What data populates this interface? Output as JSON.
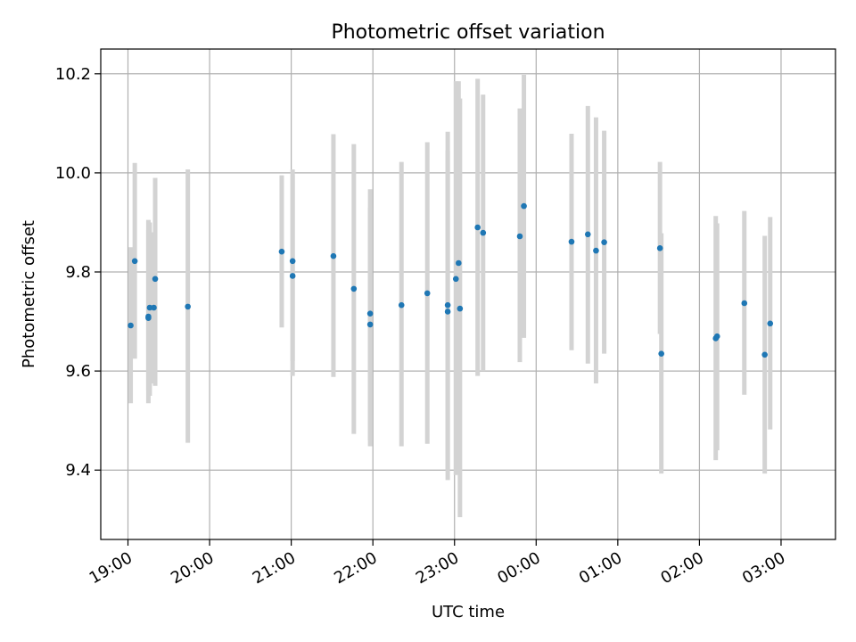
{
  "chart_data": {
    "type": "scatter",
    "title": "Photometric offset variation",
    "xlabel": "UTC time",
    "ylabel": "Photometric offset",
    "xlim": [
      "18:40",
      "03:40"
    ],
    "ylim": [
      9.26,
      10.25
    ],
    "grid": true,
    "x_ticks": [
      "19:00",
      "20:00",
      "21:00",
      "22:00",
      "23:00",
      "00:00",
      "01:00",
      "02:00",
      "03:00"
    ],
    "y_ticks": [
      "9.4",
      "9.6",
      "9.8",
      "10.0",
      "10.2"
    ],
    "colors": {
      "point": "#1f77b4",
      "errorbar": "#d3d3d3",
      "grid": "#b0b0b0"
    },
    "series": [
      {
        "points": [
          {
            "x": "19:02",
            "y": 9.692,
            "err_low": 9.535,
            "err_high": 9.85
          },
          {
            "x": "19:05",
            "y": 9.822,
            "err_low": 9.625,
            "err_high": 10.02
          },
          {
            "x": "19:15",
            "y": 9.71,
            "err_low": 9.535,
            "err_high": 9.885
          },
          {
            "x": "19:15",
            "y": 9.707,
            "err_low": 9.56,
            "err_high": 9.905
          },
          {
            "x": "19:16",
            "y": 9.728,
            "err_low": 9.55,
            "err_high": 9.9
          },
          {
            "x": "19:19",
            "y": 9.728,
            "err_low": 9.575,
            "err_high": 9.88
          },
          {
            "x": "19:20",
            "y": 9.786,
            "err_low": 9.57,
            "err_high": 9.99
          },
          {
            "x": "19:44",
            "y": 9.73,
            "err_low": 9.455,
            "err_high": 10.007
          },
          {
            "x": "20:53",
            "y": 9.841,
            "err_low": 9.688,
            "err_high": 9.995
          },
          {
            "x": "21:01",
            "y": 9.792,
            "err_low": 9.59,
            "err_high": 10.007
          },
          {
            "x": "21:01",
            "y": 9.822,
            "err_low": 9.62,
            "err_high": 9.995
          },
          {
            "x": "21:31",
            "y": 9.832,
            "err_low": 9.588,
            "err_high": 10.078
          },
          {
            "x": "21:46",
            "y": 9.766,
            "err_low": 9.473,
            "err_high": 10.058
          },
          {
            "x": "21:58",
            "y": 9.716,
            "err_low": 9.448,
            "err_high": 9.967
          },
          {
            "x": "21:58",
            "y": 9.694,
            "err_low": 9.46,
            "err_high": 9.93
          },
          {
            "x": "22:21",
            "y": 9.733,
            "err_low": 9.448,
            "err_high": 10.022
          },
          {
            "x": "22:40",
            "y": 9.757,
            "err_low": 9.453,
            "err_high": 10.062
          },
          {
            "x": "22:55",
            "y": 9.733,
            "err_low": 9.38,
            "err_high": 10.083
          },
          {
            "x": "22:55",
            "y": 9.72,
            "err_low": 9.4,
            "err_high": 10.045
          },
          {
            "x": "23:01",
            "y": 9.786,
            "err_low": 9.39,
            "err_high": 10.185
          },
          {
            "x": "23:03",
            "y": 9.818,
            "err_low": 9.47,
            "err_high": 10.185
          },
          {
            "x": "23:04",
            "y": 9.726,
            "err_low": 9.305,
            "err_high": 10.15
          },
          {
            "x": "23:17",
            "y": 9.89,
            "err_low": 9.59,
            "err_high": 10.19
          },
          {
            "x": "23:21",
            "y": 9.879,
            "err_low": 9.6,
            "err_high": 10.158
          },
          {
            "x": "23:48",
            "y": 9.872,
            "err_low": 9.618,
            "err_high": 10.13
          },
          {
            "x": "23:51",
            "y": 9.933,
            "err_low": 9.667,
            "err_high": 10.198
          },
          {
            "x": "00:26",
            "y": 9.861,
            "err_low": 9.642,
            "err_high": 10.079
          },
          {
            "x": "00:38",
            "y": 9.876,
            "err_low": 9.615,
            "err_high": 10.135
          },
          {
            "x": "00:44",
            "y": 9.843,
            "err_low": 9.575,
            "err_high": 10.112
          },
          {
            "x": "00:50",
            "y": 9.86,
            "err_low": 9.635,
            "err_high": 10.085
          },
          {
            "x": "01:31",
            "y": 9.848,
            "err_low": 9.675,
            "err_high": 10.022
          },
          {
            "x": "01:32",
            "y": 9.635,
            "err_low": 9.393,
            "err_high": 9.878
          },
          {
            "x": "02:12",
            "y": 9.666,
            "err_low": 9.42,
            "err_high": 9.913
          },
          {
            "x": "02:13",
            "y": 9.67,
            "err_low": 9.44,
            "err_high": 9.898
          },
          {
            "x": "02:33",
            "y": 9.737,
            "err_low": 9.552,
            "err_high": 9.923
          },
          {
            "x": "02:48",
            "y": 9.633,
            "err_low": 9.393,
            "err_high": 9.873
          },
          {
            "x": "02:52",
            "y": 9.696,
            "err_low": 9.482,
            "err_high": 9.911
          }
        ]
      }
    ]
  }
}
